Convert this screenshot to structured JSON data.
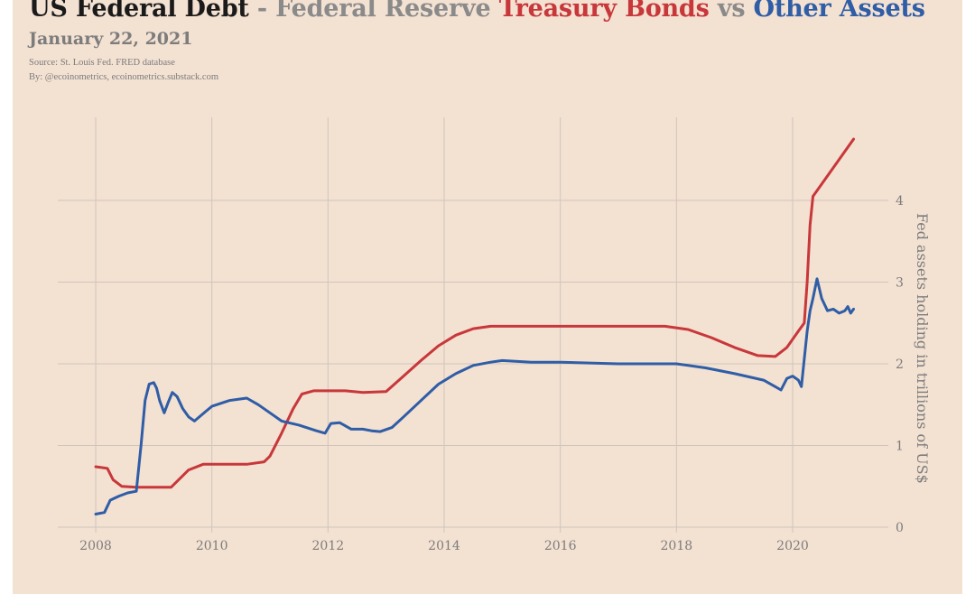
{
  "header": {
    "title_part1": "US Federal Debt",
    "title_part2": " - Federal Reserve ",
    "title_part3": "Treasury Bonds",
    "title_part4": " vs ",
    "title_part5": "Other Assets",
    "subtitle": "January 22, 2021",
    "source": "Source: St. Louis Fed. FRED database",
    "byline": "By: @ecoinometrics, ecoinometrics.substack.com"
  },
  "colors": {
    "background": "#f3e1d2",
    "grid": "#cfc5bd",
    "treasury": "#c8373a",
    "other": "#2f5da6",
    "text_muted": "#7c7c7c"
  },
  "chart_data": {
    "type": "line",
    "title": "US Federal Debt - Federal Reserve Treasury Bonds vs Other Assets",
    "ylabel": "Fed assets holding in trillions of US$",
    "xlim": [
      2007.6,
      2021.3
    ],
    "ylim": [
      0,
      4.8
    ],
    "x_ticks": [
      2008,
      2010,
      2012,
      2014,
      2016,
      2018,
      2020
    ],
    "y_ticks": [
      0,
      1,
      2,
      3,
      4
    ],
    "y_axis_position": "right",
    "grid": true,
    "series": [
      {
        "name": "Treasury Bonds",
        "color": "#c8373a",
        "x": [
          2008.0,
          2008.2,
          2008.3,
          2008.45,
          2008.7,
          2009.0,
          2009.3,
          2009.6,
          2009.85,
          2010.2,
          2010.6,
          2010.9,
          2011.0,
          2011.2,
          2011.4,
          2011.55,
          2011.75,
          2012.0,
          2012.3,
          2012.6,
          2013.0,
          2013.3,
          2013.6,
          2013.9,
          2014.2,
          2014.5,
          2014.8,
          2015.0,
          2016.0,
          2017.0,
          2017.8,
          2018.2,
          2018.6,
          2019.0,
          2019.4,
          2019.7,
          2019.9,
          2020.1,
          2020.2,
          2020.25,
          2020.3,
          2020.35,
          2020.5,
          2021.05
        ],
        "y": [
          0.74,
          0.72,
          0.58,
          0.5,
          0.49,
          0.49,
          0.49,
          0.7,
          0.77,
          0.77,
          0.77,
          0.8,
          0.87,
          1.15,
          1.45,
          1.63,
          1.67,
          1.67,
          1.67,
          1.65,
          1.66,
          1.85,
          2.04,
          2.22,
          2.35,
          2.43,
          2.46,
          2.46,
          2.46,
          2.46,
          2.46,
          2.42,
          2.32,
          2.2,
          2.1,
          2.09,
          2.2,
          2.4,
          2.5,
          3.0,
          3.7,
          4.05,
          4.2,
          4.75
        ]
      },
      {
        "name": "Other Assets",
        "color": "#2f5da6",
        "x": [
          2008.0,
          2008.15,
          2008.25,
          2008.4,
          2008.55,
          2008.7,
          2008.78,
          2008.85,
          2008.92,
          2009.0,
          2009.05,
          2009.1,
          2009.18,
          2009.25,
          2009.32,
          2009.4,
          2009.5,
          2009.6,
          2009.7,
          2009.9,
          2010.0,
          2010.3,
          2010.6,
          2010.8,
          2011.0,
          2011.2,
          2011.5,
          2011.8,
          2011.95,
          2012.05,
          2012.2,
          2012.4,
          2012.6,
          2012.75,
          2012.9,
          2013.1,
          2013.3,
          2013.6,
          2013.9,
          2014.2,
          2014.5,
          2014.8,
          2015.0,
          2015.5,
          2016.0,
          2016.5,
          2017.0,
          2017.5,
          2018.0,
          2018.5,
          2019.0,
          2019.5,
          2019.7,
          2019.8,
          2019.9,
          2020.0,
          2020.1,
          2020.15,
          2020.25,
          2020.3,
          2020.35,
          2020.42,
          2020.5,
          2020.6,
          2020.7,
          2020.8,
          2020.9,
          2020.95,
          2021.0,
          2021.05
        ],
        "y": [
          0.16,
          0.18,
          0.33,
          0.38,
          0.42,
          0.44,
          1.0,
          1.55,
          1.75,
          1.77,
          1.7,
          1.55,
          1.4,
          1.53,
          1.65,
          1.6,
          1.45,
          1.35,
          1.3,
          1.42,
          1.48,
          1.55,
          1.58,
          1.5,
          1.4,
          1.3,
          1.25,
          1.18,
          1.15,
          1.27,
          1.28,
          1.2,
          1.2,
          1.18,
          1.17,
          1.22,
          1.35,
          1.55,
          1.75,
          1.88,
          1.98,
          2.02,
          2.04,
          2.02,
          2.02,
          2.01,
          2.0,
          2.0,
          2.0,
          1.95,
          1.88,
          1.8,
          1.72,
          1.68,
          1.82,
          1.85,
          1.8,
          1.72,
          2.4,
          2.65,
          2.8,
          3.04,
          2.8,
          2.65,
          2.67,
          2.62,
          2.65,
          2.7,
          2.62,
          2.67
        ]
      }
    ]
  }
}
